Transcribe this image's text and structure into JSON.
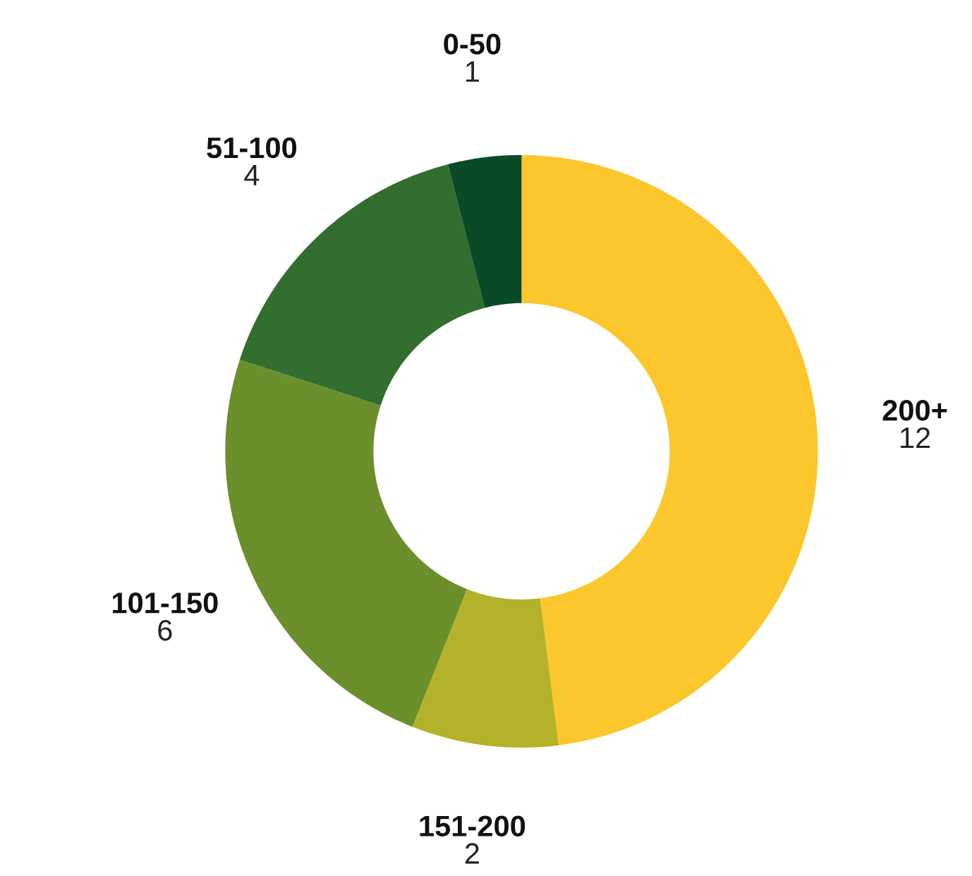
{
  "chart_data": {
    "type": "donut",
    "categories": [
      "200+",
      "151-200",
      "101-150",
      "51-100",
      "0-50"
    ],
    "values": [
      12,
      2,
      6,
      4,
      1
    ],
    "colors": [
      "#fbc72c",
      "#b4b22a",
      "#6b8f2b",
      "#326e2d",
      "#0b4a27"
    ],
    "data_labels": true,
    "legend": false
  }
}
